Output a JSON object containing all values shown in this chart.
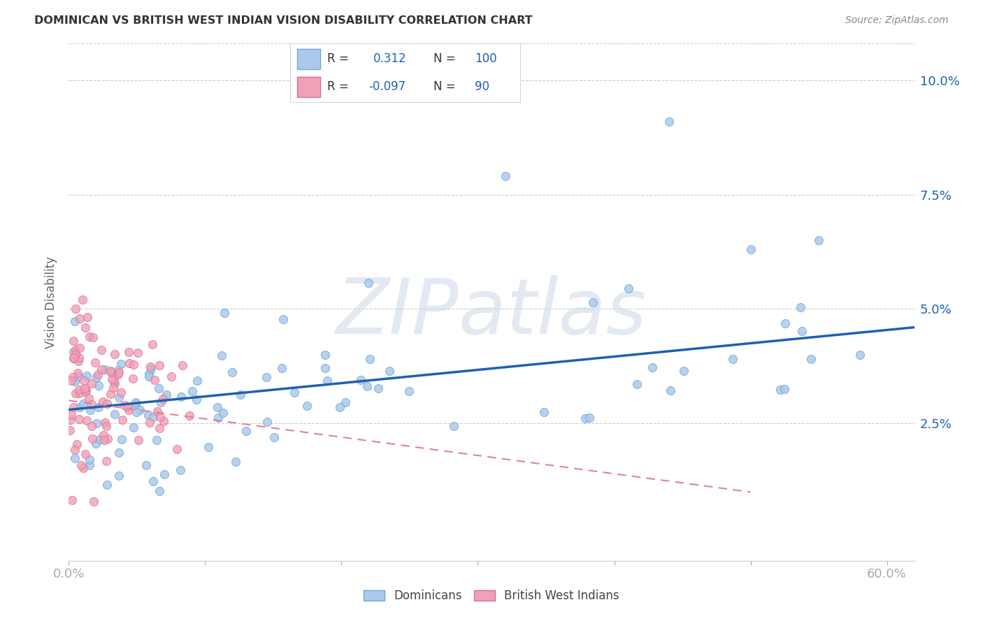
{
  "title": "DOMINICAN VS BRITISH WEST INDIAN VISION DISABILITY CORRELATION CHART",
  "source": "Source: ZipAtlas.com",
  "ylabel": "Vision Disability",
  "xlim": [
    0.0,
    0.62
  ],
  "ylim": [
    -0.005,
    0.108
  ],
  "yticks": [
    0.025,
    0.05,
    0.075,
    0.1
  ],
  "ytick_labels": [
    "2.5%",
    "5.0%",
    "7.5%",
    "10.0%"
  ],
  "dominican_color": "#adc8ed",
  "dominican_edge": "#6aaad4",
  "bwi_color": "#f0a0b8",
  "bwi_edge": "#d87090",
  "line_blue": "#2060b0",
  "line_pink": "#e080a0",
  "watermark": "ZIPatlas",
  "dominican_label": "Dominicans",
  "bwi_label": "British West Indians",
  "legend_box_color": "#e8f0f8",
  "legend_border_color": "#c0c8d8",
  "blue_R_val": "0.312",
  "blue_N_val": "100",
  "pink_R_val": "-0.097",
  "pink_N_val": "90",
  "dom_line_x0": 0.0,
  "dom_line_x1": 0.62,
  "dom_line_y0": 0.028,
  "dom_line_y1": 0.046,
  "bwi_line_x0": 0.0,
  "bwi_line_x1": 0.5,
  "bwi_line_y0": 0.03,
  "bwi_line_y1": 0.01
}
